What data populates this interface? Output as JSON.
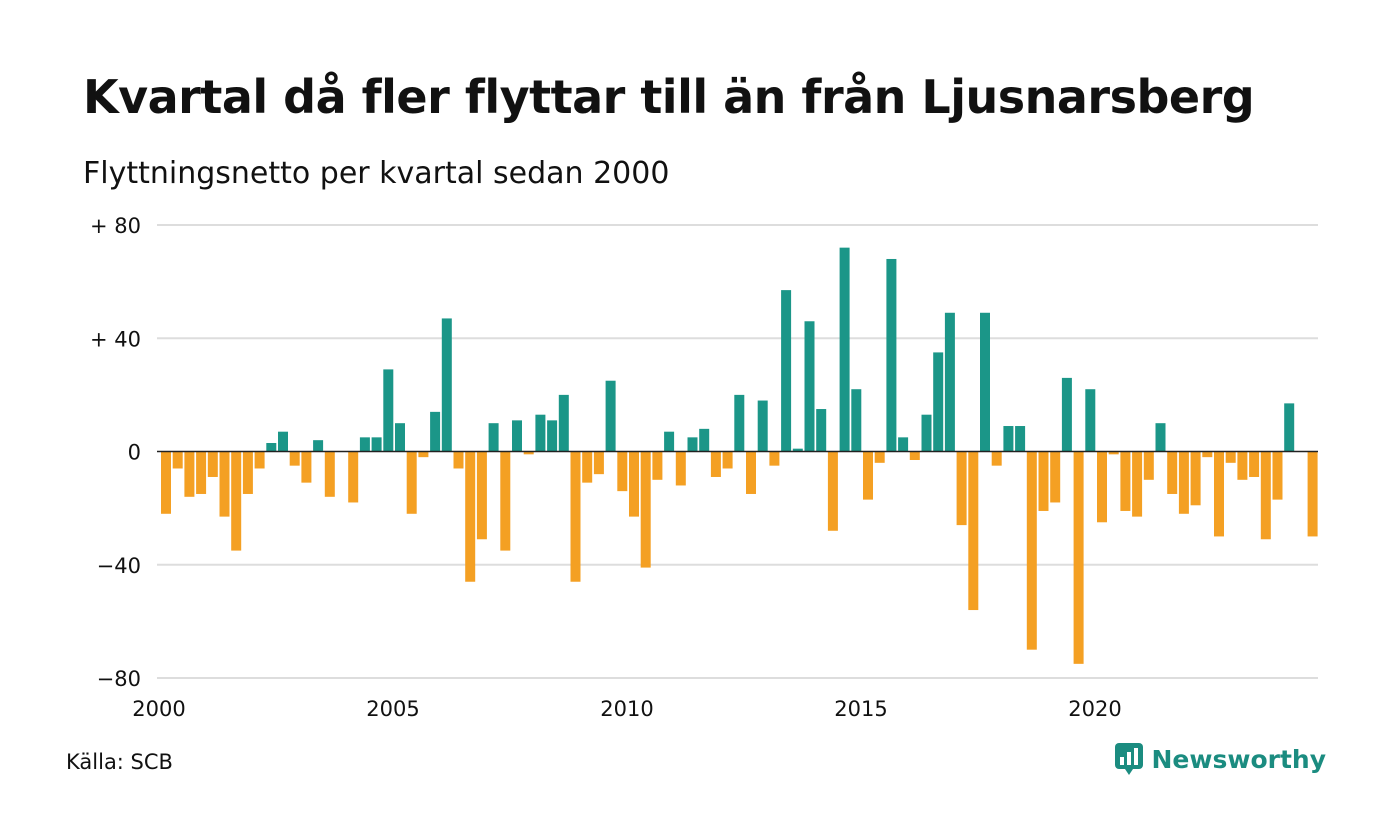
{
  "title": "Kvartal då fler flyttar till än från Ljusnarsberg",
  "subtitle": "Flyttningsnetto per kvartal sedan 2000",
  "source": "Källa: SCB",
  "brand": "Newsworthy",
  "colors": {
    "positive": "#1b9688",
    "negative": "#f4a023",
    "grid": "#dddddd",
    "zero": "#222222",
    "brand": "#1b8c80"
  },
  "chart_data": {
    "type": "bar",
    "ylim": [
      -80,
      80
    ],
    "yticks": [
      {
        "value": 80,
        "label": "+ 80"
      },
      {
        "value": 40,
        "label": "+ 40"
      },
      {
        "value": 0,
        "label": "0"
      },
      {
        "value": -40,
        "label": "−40"
      },
      {
        "value": -80,
        "label": "−80"
      }
    ],
    "xticks": [
      "2000",
      "2005",
      "2010",
      "2015",
      "2020"
    ],
    "start_year": 2000,
    "values": [
      -22,
      -6,
      -16,
      -15,
      -9,
      -23,
      -35,
      -15,
      -6,
      3,
      7,
      -5,
      -11,
      4,
      -16,
      0,
      -18,
      5,
      5,
      29,
      10,
      -22,
      -2,
      14,
      47,
      -6,
      -46,
      -31,
      10,
      -35,
      11,
      -1,
      13,
      11,
      20,
      -46,
      -11,
      -8,
      25,
      -14,
      -23,
      -41,
      -10,
      7,
      -12,
      5,
      8,
      -9,
      -6,
      20,
      -15,
      18,
      -5,
      57,
      1,
      46,
      15,
      -28,
      72,
      22,
      -17,
      -4,
      68,
      5,
      -3,
      13,
      35,
      49,
      -26,
      -56,
      49,
      -5,
      9,
      9,
      -70,
      -21,
      -18,
      26,
      -75,
      22,
      -25,
      -1,
      -21,
      -23,
      -10,
      10,
      -15,
      -22,
      -19,
      -2,
      -30,
      -4,
      -10,
      -9,
      -31,
      -17,
      17,
      0,
      -30
    ]
  }
}
